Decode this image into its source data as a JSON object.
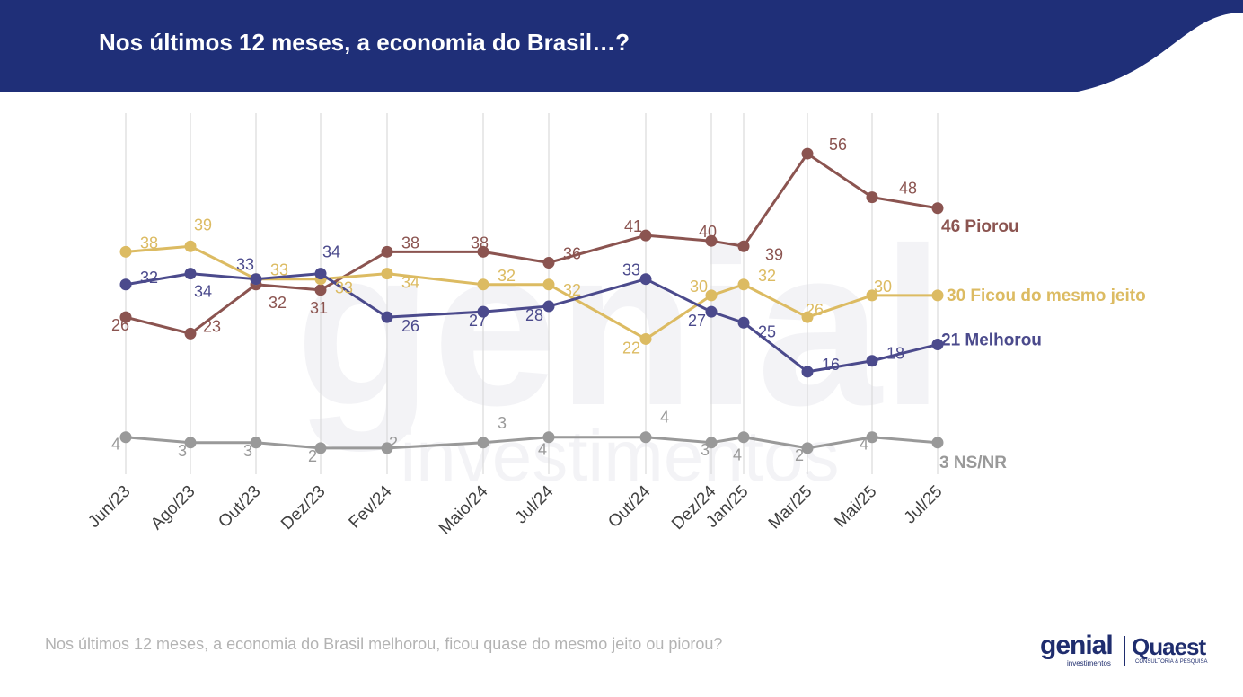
{
  "header": {
    "title": "Nos últimos 12 meses, a economia do Brasil…?"
  },
  "footnote": "Nos últimos 12 meses, a economia do Brasil melhorou, ficou quase do mesmo jeito ou piorou?",
  "logos": {
    "genial": "genial",
    "genial_sub": "investimentos",
    "quaest": "Quaest",
    "quaest_sub": "CONSULTORIA & PESQUISA"
  },
  "watermark": "genial investimentos",
  "colors": {
    "header": "#1f2f78",
    "piorou": "#8b5450",
    "mesmo_jeito": "#dcbb62",
    "melhorou": "#4b4a8c",
    "ns_nr": "#999999",
    "gridline": "#dddddd"
  },
  "chart_data": {
    "type": "line",
    "title": "Nos últimos 12 meses, a economia do Brasil…?",
    "xlabel": "",
    "ylabel": "",
    "grid": "vertical",
    "legend": "end-of-line labels",
    "x": [
      "Jun/23",
      "Ago/23",
      "Out/23",
      "Dez/23",
      "Fev/24",
      "Maio/24",
      "Jul/24",
      "Out/24",
      "Dez/24",
      "Jan/25",
      "Mar/25",
      "Mai/25",
      "Jul/25"
    ],
    "series": [
      {
        "key": "piorou",
        "name": "Piorou",
        "end_label": "46 Piorou",
        "values": [
          26,
          23,
          32,
          31,
          38,
          38,
          36,
          41,
          40,
          39,
          56,
          48,
          46
        ]
      },
      {
        "key": "mesmo_jeito",
        "name": "Ficou do mesmo jeito",
        "end_label": "30 Ficou do mesmo jeito",
        "values": [
          38,
          39,
          33,
          33,
          34,
          32,
          32,
          22,
          30,
          32,
          26,
          30,
          30
        ]
      },
      {
        "key": "melhorou",
        "name": "Melhorou",
        "end_label": "21 Melhorou",
        "values": [
          32,
          34,
          33,
          34,
          26,
          27,
          28,
          33,
          27,
          25,
          16,
          18,
          21
        ]
      },
      {
        "key": "ns_nr",
        "name": "NS/NR",
        "end_label": "3 NS/NR",
        "values": [
          4,
          3,
          3,
          2,
          2,
          3,
          4,
          4,
          3,
          4,
          2,
          4,
          3
        ]
      }
    ]
  }
}
